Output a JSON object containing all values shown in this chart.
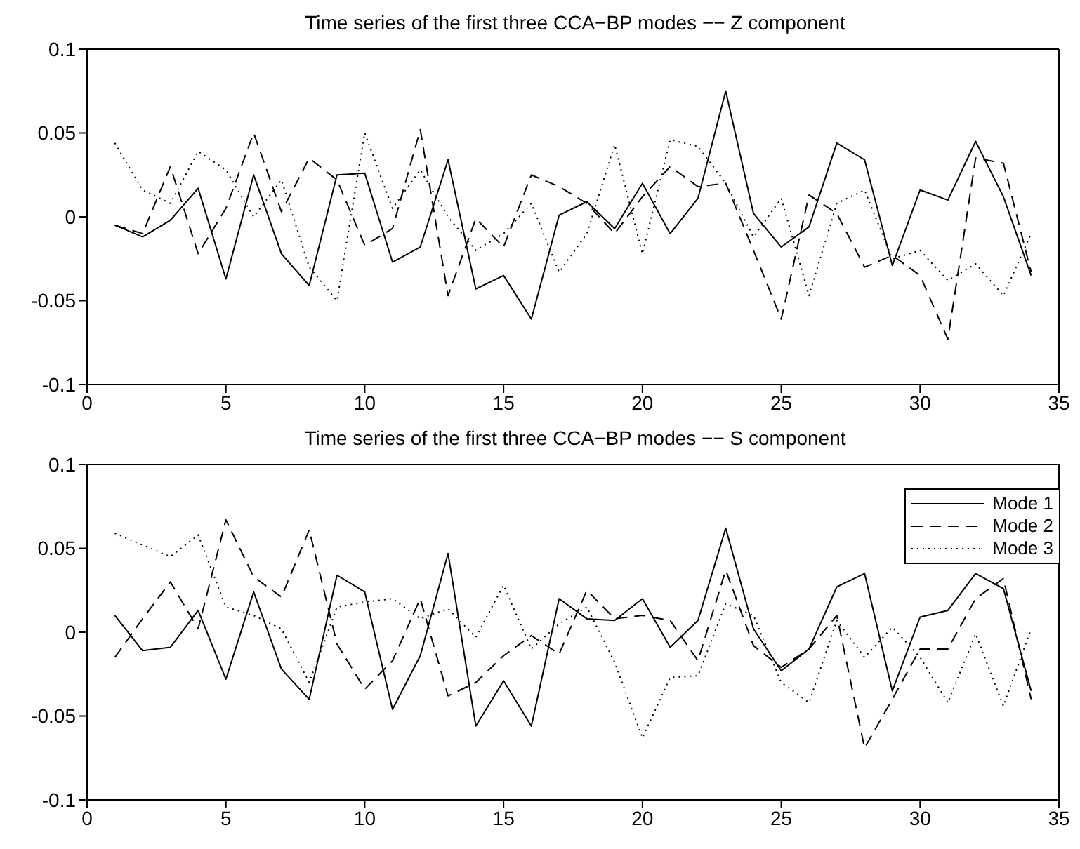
{
  "chart_data": [
    {
      "type": "line",
      "title": "Time series of the first three CCA−BP modes −− Z component",
      "x": [
        1,
        2,
        3,
        4,
        5,
        6,
        7,
        8,
        9,
        10,
        11,
        12,
        13,
        14,
        15,
        16,
        17,
        18,
        19,
        20,
        21,
        22,
        23,
        24,
        25,
        26,
        27,
        28,
        29,
        30,
        31,
        32,
        33,
        34
      ],
      "xlim": [
        0,
        35
      ],
      "xticks": [
        0,
        5,
        10,
        15,
        20,
        25,
        30,
        35
      ],
      "ylim": [
        -0.1,
        0.1
      ],
      "yticks": [
        -0.1,
        -0.05,
        0,
        0.05,
        0.1
      ],
      "legend": false,
      "marker": "none",
      "series": [
        {
          "color": "#000000",
          "line_style": "solid",
          "values": [
            -0.005,
            -0.012,
            -0.002,
            0.017,
            -0.037,
            0.025,
            -0.022,
            -0.041,
            0.025,
            0.026,
            -0.027,
            -0.018,
            0.034,
            -0.043,
            -0.035,
            -0.061,
            0.001,
            0.009,
            -0.007,
            0.02,
            -0.01,
            0.011,
            0.075,
            0.002,
            -0.018,
            -0.006,
            0.044,
            0.034,
            -0.029,
            0.016,
            0.01,
            0.045,
            0.012,
            -0.035
          ]
        },
        {
          "color": "#000000",
          "line_style": "dashed",
          "values": [
            -0.005,
            -0.01,
            0.03,
            -0.022,
            0.005,
            0.05,
            0.003,
            0.035,
            0.022,
            -0.017,
            -0.007,
            0.052,
            -0.047,
            -0.001,
            -0.018,
            0.025,
            0.018,
            0.008,
            -0.01,
            0.012,
            0.03,
            0.018,
            0.02,
            -0.02,
            -0.061,
            0.013,
            0.002,
            -0.03,
            -0.023,
            -0.035,
            -0.073,
            0.035,
            0.032,
            -0.033
          ]
        },
        {
          "color": "#000000",
          "line_style": "dotted",
          "values": [
            0.044,
            0.016,
            0.008,
            0.039,
            0.028,
            0.0,
            0.022,
            -0.03,
            -0.05,
            0.05,
            0.005,
            0.028,
            0.0,
            -0.02,
            -0.01,
            0.008,
            -0.033,
            -0.01,
            0.043,
            -0.022,
            0.046,
            0.042,
            0.02,
            -0.012,
            0.011,
            -0.047,
            0.008,
            0.016,
            -0.025,
            -0.02,
            -0.038,
            -0.028,
            -0.047,
            -0.01
          ]
        }
      ]
    },
    {
      "type": "line",
      "title": "Time series of the first three CCA−BP modes −− S component",
      "x": [
        1,
        2,
        3,
        4,
        5,
        6,
        7,
        8,
        9,
        10,
        11,
        12,
        13,
        14,
        15,
        16,
        17,
        18,
        19,
        20,
        21,
        22,
        23,
        24,
        25,
        26,
        27,
        28,
        29,
        30,
        31,
        32,
        33,
        34
      ],
      "xlim": [
        0,
        35
      ],
      "xticks": [
        0,
        5,
        10,
        15,
        20,
        25,
        30,
        35
      ],
      "ylim": [
        -0.1,
        0.1
      ],
      "yticks": [
        -0.1,
        -0.05,
        0,
        0.05,
        0.1
      ],
      "legend": "top right",
      "marker": "none",
      "series": [
        {
          "name": "Mode 1",
          "color": "#000000",
          "line_style": "solid",
          "values": [
            0.01,
            -0.011,
            -0.009,
            0.013,
            -0.028,
            0.024,
            -0.022,
            -0.04,
            0.034,
            0.024,
            -0.046,
            -0.014,
            0.047,
            -0.056,
            -0.029,
            -0.056,
            0.02,
            0.008,
            0.007,
            0.02,
            -0.009,
            0.007,
            0.062,
            0.002,
            -0.023,
            -0.01,
            0.027,
            0.035,
            -0.035,
            0.009,
            0.013,
            0.035,
            0.026,
            -0.035
          ]
        },
        {
          "name": "Mode 2",
          "color": "#000000",
          "line_style": "dashed",
          "values": [
            -0.015,
            0.008,
            0.03,
            0.002,
            0.067,
            0.033,
            0.021,
            0.061,
            -0.007,
            -0.034,
            -0.017,
            0.02,
            -0.038,
            -0.03,
            -0.014,
            -0.002,
            -0.013,
            0.025,
            0.008,
            0.01,
            0.007,
            -0.017,
            0.037,
            -0.008,
            -0.021,
            -0.01,
            0.01,
            -0.069,
            -0.04,
            -0.01,
            -0.01,
            0.02,
            0.032,
            -0.04
          ]
        },
        {
          "name": "Mode 3",
          "color": "#000000",
          "line_style": "dotted",
          "values": [
            0.059,
            0.052,
            0.045,
            0.058,
            0.015,
            0.01,
            0.002,
            -0.03,
            0.015,
            0.018,
            0.02,
            0.008,
            0.014,
            -0.003,
            0.028,
            -0.01,
            0.005,
            0.015,
            -0.018,
            -0.063,
            -0.027,
            -0.026,
            0.017,
            0.01,
            -0.03,
            -0.042,
            0.007,
            -0.015,
            0.003,
            -0.015,
            -0.042,
            -0.001,
            -0.044,
            0.002
          ]
        }
      ]
    }
  ]
}
